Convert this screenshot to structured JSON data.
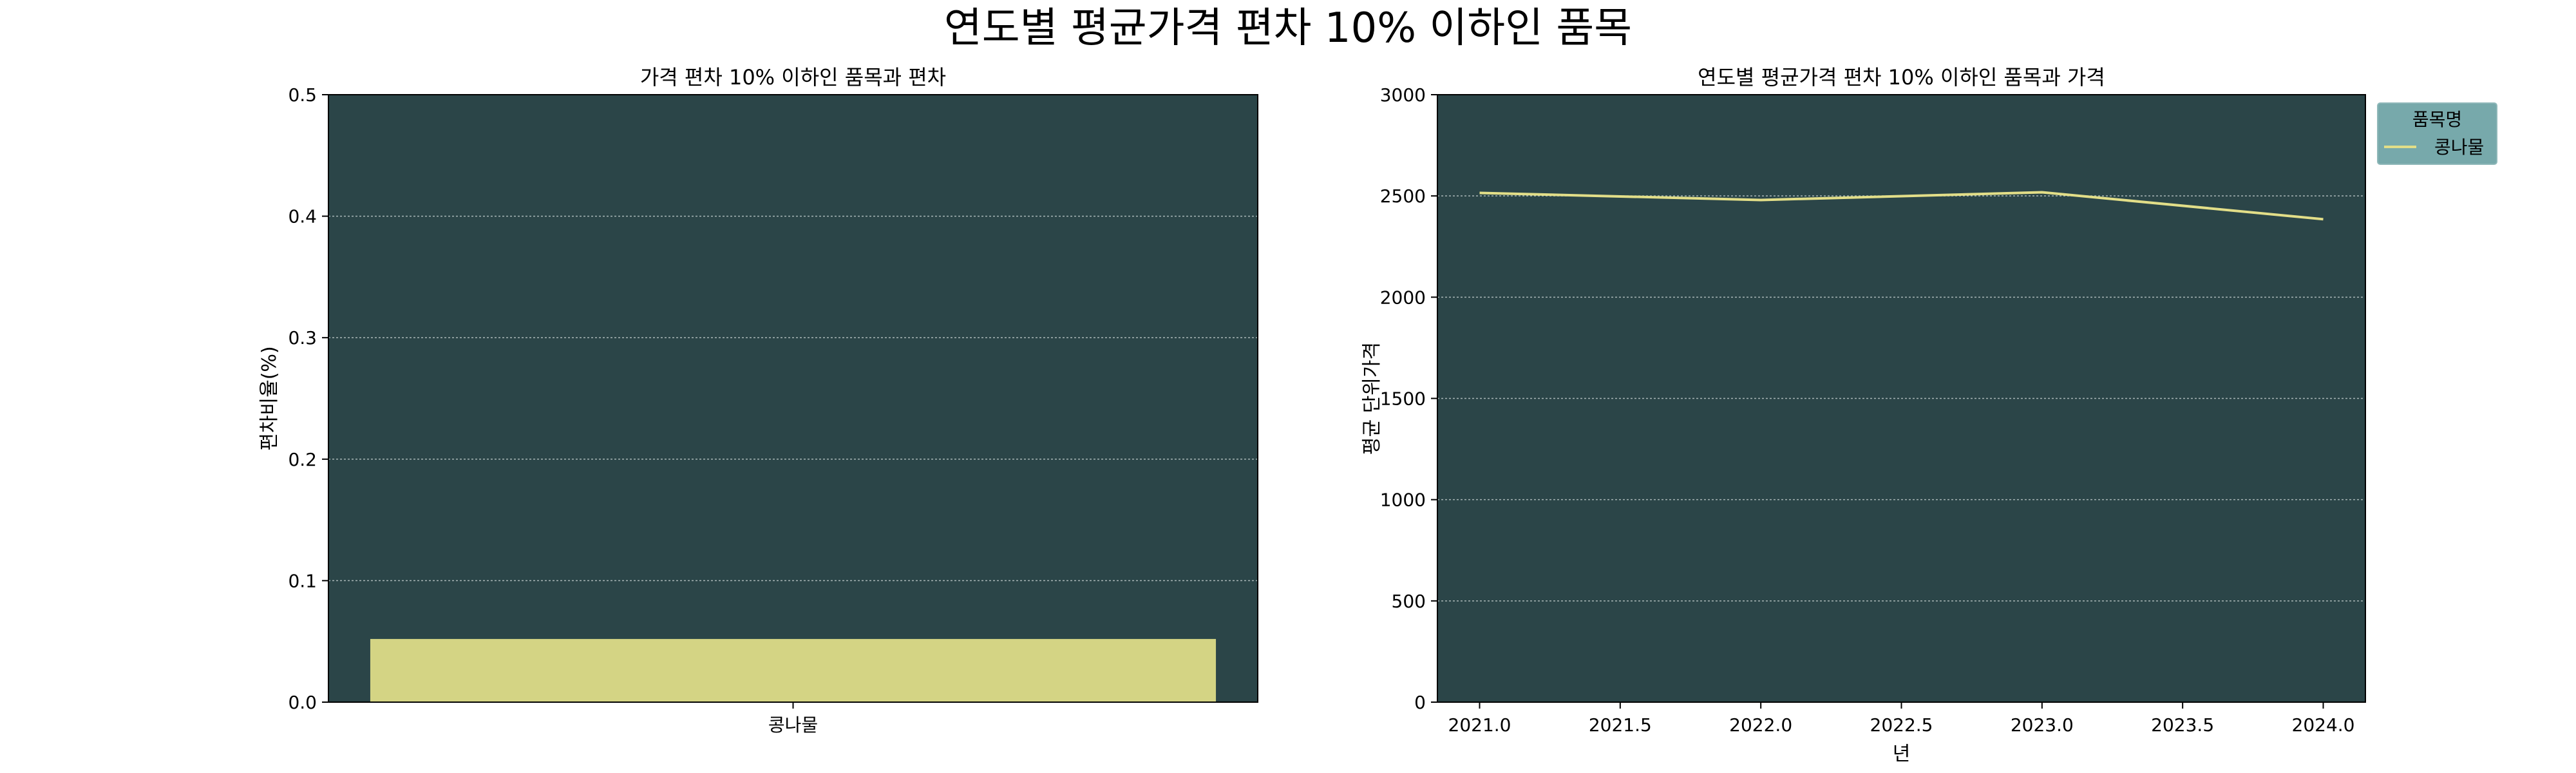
{
  "suptitle": "연도별 평균가격 편차 10% 이하인 품목",
  "colors": {
    "plot_bg": "#2b4548",
    "bar": "#d4d484",
    "line": "#e2de88",
    "grid": "#a9b6b6",
    "legend_bg": "#77a9ab"
  },
  "chart_data": [
    {
      "type": "bar",
      "title": "가격 편차 10% 이하인 품목과 편차",
      "xlabel": "",
      "ylabel": "편차비율(%)",
      "categories": [
        "콩나물"
      ],
      "values": [
        0.052
      ],
      "ylim": [
        0,
        0.5
      ],
      "yticks": [
        0.0,
        0.1,
        0.2,
        0.3,
        0.4,
        0.5
      ],
      "ytick_labels": [
        "0.0",
        "0.1",
        "0.2",
        "0.3",
        "0.4",
        "0.5"
      ],
      "grid": "y"
    },
    {
      "type": "line",
      "title": "연도별 평균가격 편차 10% 이하인 품목과 가격",
      "xlabel": "년",
      "ylabel": "평균 단위가격",
      "xlim": [
        2020.85,
        2024.15
      ],
      "ylim": [
        0,
        3000
      ],
      "xticks": [
        2021.0,
        2021.5,
        2022.0,
        2022.5,
        2023.0,
        2023.5,
        2024.0
      ],
      "xtick_labels": [
        "2021.0",
        "2021.5",
        "2022.0",
        "2022.5",
        "2023.0",
        "2023.5",
        "2024.0"
      ],
      "yticks": [
        0,
        500,
        1000,
        1500,
        2000,
        2500,
        3000
      ],
      "ytick_labels": [
        "0",
        "500",
        "1000",
        "1500",
        "2000",
        "2500",
        "3000"
      ],
      "grid": "y",
      "legend": {
        "title": "품목명",
        "placement": "outside top-right"
      },
      "series": [
        {
          "name": "콩나물",
          "x": [
            2021,
            2022,
            2023,
            2024
          ],
          "y": [
            2515,
            2480,
            2518,
            2385
          ]
        }
      ]
    }
  ]
}
